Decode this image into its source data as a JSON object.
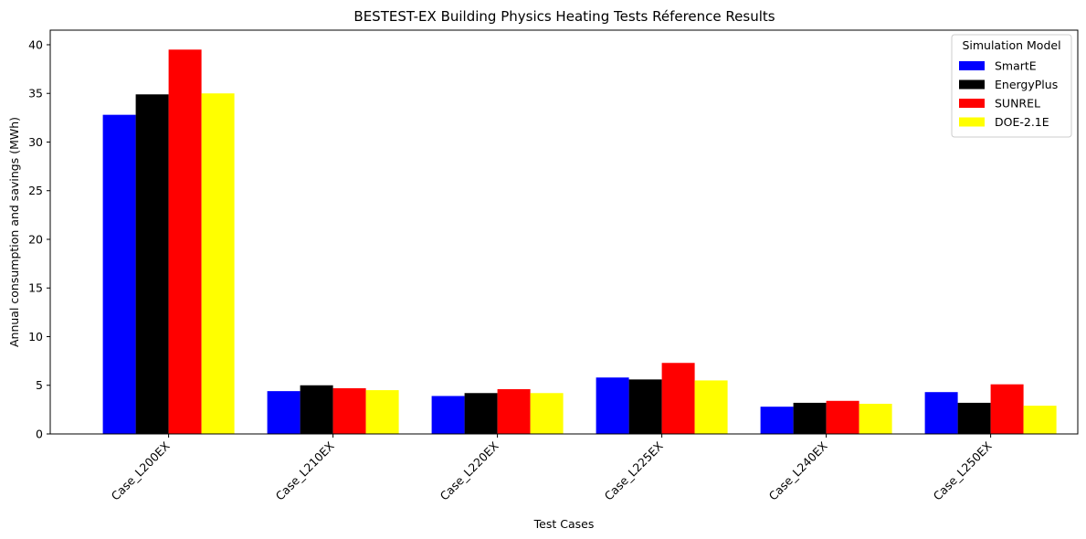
{
  "chart_data": {
    "type": "bar",
    "title": "BESTEST-EX Building Physics Heating Tests Réference Results",
    "xlabel": "Test Cases",
    "ylabel": "Annual consumption and savings (MWh)",
    "categories": [
      "Case_L200EX",
      "Case_L210EX",
      "Case_L220EX",
      "Case_L225EX",
      "Case_L240EX",
      "Case_L250EX"
    ],
    "ylim": [
      0,
      41.5
    ],
    "yticks": [
      0,
      5,
      10,
      15,
      20,
      25,
      30,
      35,
      40
    ],
    "grid": false,
    "legend": {
      "title": "Simulation Model",
      "placement": "top-right"
    },
    "series": [
      {
        "name": "SmartE",
        "color": "#0000ff",
        "values": [
          32.8,
          4.4,
          3.9,
          5.8,
          2.8,
          4.3
        ]
      },
      {
        "name": "EnergyPlus",
        "color": "#000000",
        "values": [
          34.9,
          5.0,
          4.2,
          5.6,
          3.2,
          3.2
        ]
      },
      {
        "name": "SUNREL",
        "color": "#ff0000",
        "values": [
          39.5,
          4.7,
          4.6,
          7.3,
          3.4,
          5.1
        ]
      },
      {
        "name": "DOE-2.1E",
        "color": "#ffff00",
        "values": [
          35.0,
          4.5,
          4.2,
          5.5,
          3.1,
          2.9
        ]
      }
    ]
  }
}
